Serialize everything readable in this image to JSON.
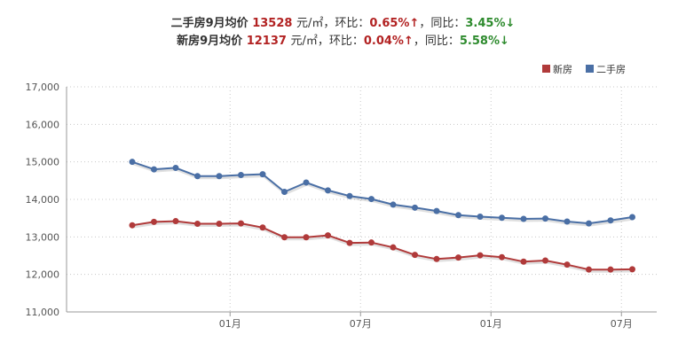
{
  "headline": {
    "resale": {
      "label": "二手房9月均价",
      "price": "13528",
      "unit": "元/㎡，",
      "mom_label": "环比：",
      "mom_value": "0.65%↑",
      "sep": "，",
      "yoy_label": "同比：",
      "yoy_value": "3.45%↓"
    },
    "new": {
      "label": "新房9月均价",
      "price": "12137",
      "unit": "元/㎡，",
      "mom_label": "环比：",
      "mom_value": "0.04%↑",
      "sep": "，",
      "yoy_label": "同比：",
      "yoy_value": "5.58%↓"
    }
  },
  "chart_data": {
    "type": "line",
    "xlabel": "",
    "ylabel": "",
    "ylim": [
      11000,
      17000
    ],
    "yticks": [
      "17,000",
      "16,000",
      "15,000",
      "14,000",
      "13,000",
      "12,000",
      "11,000"
    ],
    "ytick_values": [
      17000,
      16000,
      15000,
      14000,
      13000,
      12000,
      11000
    ],
    "xtick_labels": [
      {
        "label": "01月",
        "at": 4.5
      },
      {
        "label": "07月",
        "at": 10.5
      },
      {
        "label": "01月",
        "at": 16.5
      },
      {
        "label": "07月",
        "at": 22.5
      }
    ],
    "n_points": 24,
    "grid": true,
    "legend_position": "top-right",
    "series": [
      {
        "name": "新房",
        "color": "#b03a3a",
        "values": [
          13310,
          13400,
          13420,
          13350,
          13350,
          13360,
          13250,
          12990,
          12990,
          13040,
          12840,
          12850,
          12720,
          12520,
          12410,
          12450,
          12510,
          12460,
          12340,
          12370,
          12260,
          12130,
          12130,
          12137
        ]
      },
      {
        "name": "二手房",
        "color": "#4a6fa5",
        "values": [
          15000,
          14800,
          14840,
          14620,
          14620,
          14650,
          14670,
          14200,
          14450,
          14240,
          14090,
          14010,
          13860,
          13780,
          13690,
          13580,
          13540,
          13510,
          13480,
          13490,
          13410,
          13360,
          13440,
          13528
        ]
      }
    ]
  }
}
